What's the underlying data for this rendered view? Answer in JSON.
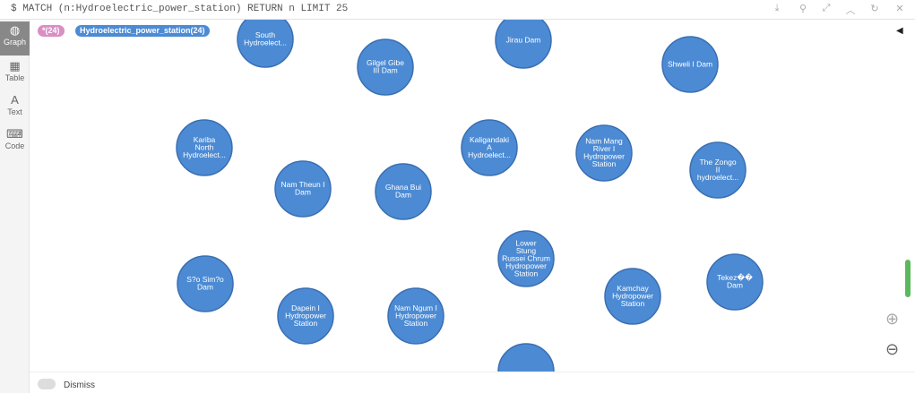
{
  "query": "$ MATCH (n:Hydroelectric_power_station) RETURN n LIMIT 25",
  "sidebar": [
    "Graph",
    "Table",
    "Text",
    "Code"
  ],
  "badges": [
    "*(24)",
    "Hydroelectric_power_station(24)"
  ],
  "nodes": [
    {
      "lines": [
        "South",
        "Hydroelect..."
      ]
    },
    {
      "lines": [
        "Gilgel Gibe",
        "III Dam"
      ]
    },
    {
      "lines": [
        "Jirau Dam"
      ]
    },
    {
      "lines": [
        "Shweli I Dam"
      ]
    },
    {
      "lines": [
        "Kariba",
        "North",
        "Hydroelect..."
      ]
    },
    {
      "lines": [
        "Kaligandaki",
        "A",
        "Hydroelect..."
      ]
    },
    {
      "lines": [
        "Nam Mang",
        "River I",
        "Hydropower",
        "Station"
      ]
    },
    {
      "lines": [
        "The Zongo",
        "II",
        "hydroelect..."
      ]
    },
    {
      "lines": [
        "Nam Theun I",
        "Dam"
      ]
    },
    {
      "lines": [
        "Ghana Bui",
        "Dam"
      ]
    },
    {
      "lines": [
        "Lower",
        "Stung",
        "Russei Chrum",
        "Hydropower",
        "Station"
      ]
    },
    {
      "lines": [
        "S?o Sim?o",
        "Dam"
      ]
    },
    {
      "lines": [
        "Tekez��",
        "Dam"
      ]
    },
    {
      "lines": [
        "Kamchay",
        "Hydropower",
        "Station"
      ]
    },
    {
      "lines": [
        "Dapein I",
        "Hydropower",
        "Station"
      ]
    },
    {
      "lines": [
        "Nam Ngum I",
        "Hydropower",
        "Station"
      ]
    }
  ],
  "footer": {
    "dismiss": "Dismiss"
  }
}
